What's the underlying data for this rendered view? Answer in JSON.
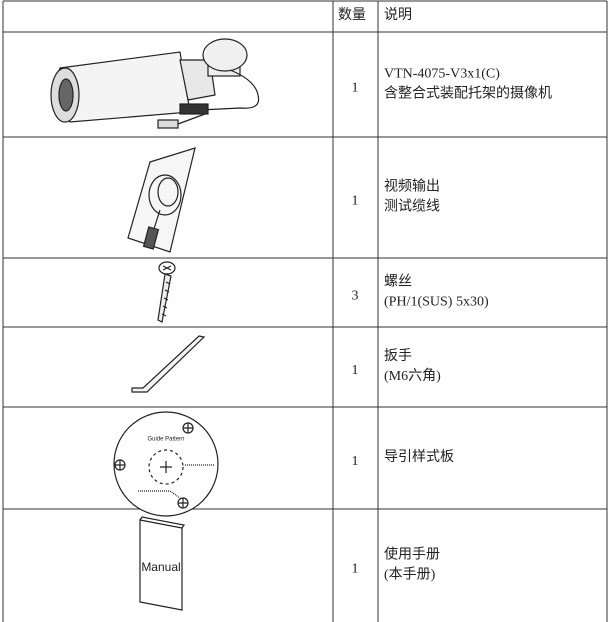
{
  "table": {
    "header": [
      "数量",
      "说明"
    ],
    "rows": [
      {
        "quantity": 1,
        "description": [
          "VTN-4075-V3x1(C)",
          "含整合式装配托架的摄像机"
        ]
      },
      {
        "quantity": 1,
        "description": [
          "视频输出",
          "测试缆线"
        ]
      },
      {
        "quantity": 3,
        "description": [
          "螺丝",
          "(PH/1(SUS) 5x30)"
        ]
      },
      {
        "quantity": 1,
        "description": [
          "扳手",
          "(M6六角)"
        ]
      },
      {
        "quantity": 1,
        "description": [
          "导引样式板"
        ]
      },
      {
        "quantity": 1,
        "description": [
          "使用手册",
          "(本手册)"
        ]
      }
    ]
  },
  "illustrations": {
    "guide_pattern": "Guide Pattern",
    "manual": "Manual"
  }
}
